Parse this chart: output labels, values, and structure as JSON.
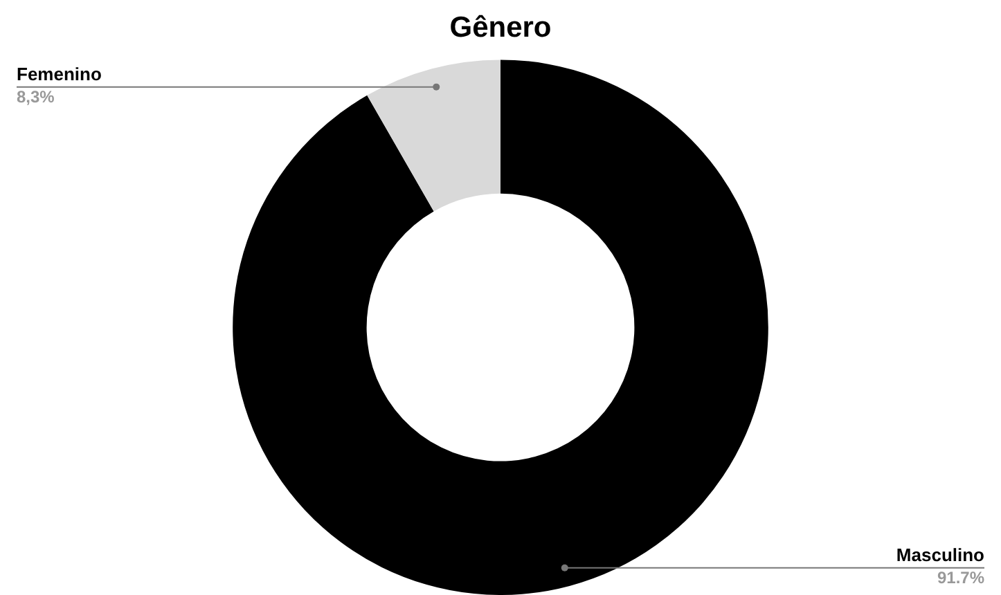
{
  "chart_data": {
    "type": "donut",
    "title": "Gênero",
    "categories": [
      "Masculino",
      "Femenino"
    ],
    "values": [
      91.7,
      8.3
    ],
    "colors": [
      "#000000",
      "#d9d9d9"
    ],
    "value_labels": [
      "91.7%",
      "8,3%"
    ],
    "legend": false
  }
}
